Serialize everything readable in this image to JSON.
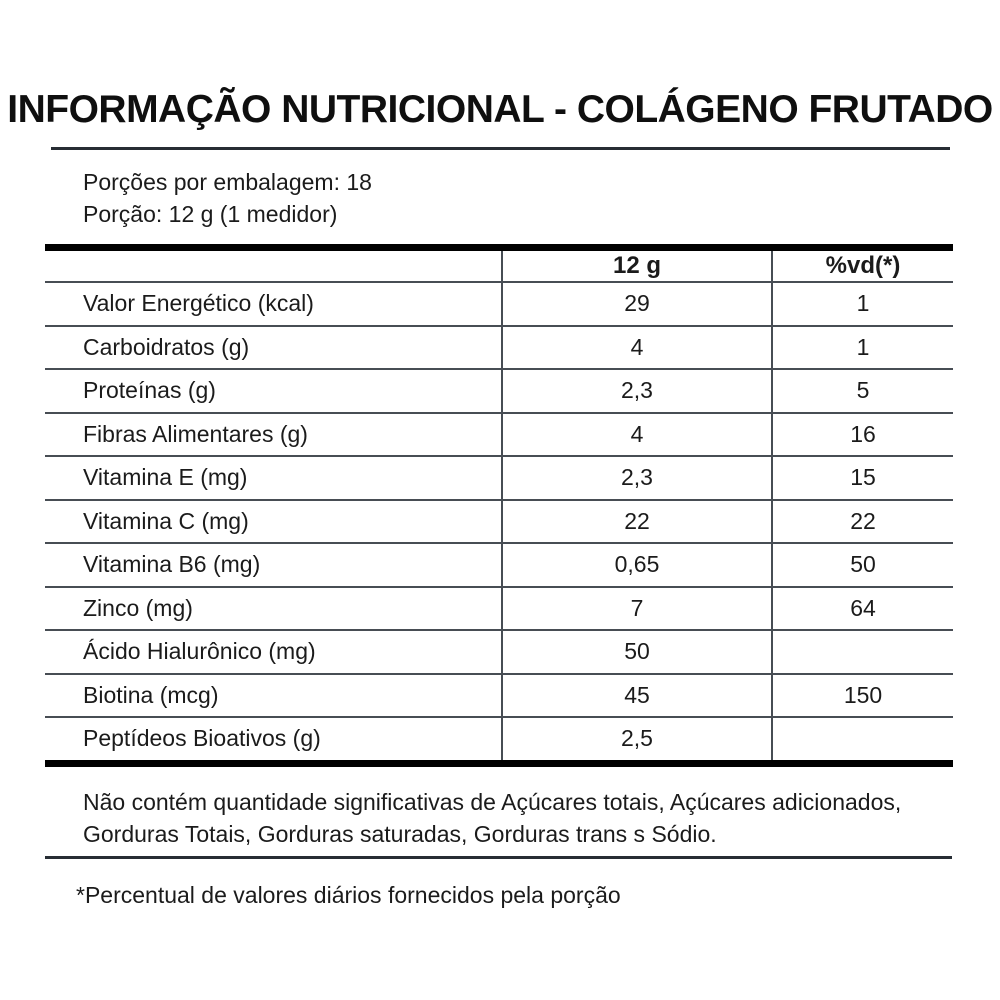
{
  "label": {
    "title": "INFORMAÇÃO NUTRICIONAL - COLÁGENO FRUTADO",
    "servings_line": "Porções por embalagem: 18",
    "portion_line": "Porção: 12 g (1 medidor)"
  },
  "table": {
    "columns": [
      "",
      "12 g",
      "%vd(*)"
    ],
    "rows": [
      {
        "label": "Valor Energético (kcal)",
        "amount": "29",
        "dv": "1"
      },
      {
        "label": "Carboidratos (g)",
        "amount": "4",
        "dv": "1"
      },
      {
        "label": "Proteínas (g)",
        "amount": "2,3",
        "dv": "5"
      },
      {
        "label": "Fibras Alimentares (g)",
        "amount": "4",
        "dv": "16"
      },
      {
        "label": "Vitamina E (mg)",
        "amount": "2,3",
        "dv": "15"
      },
      {
        "label": "Vitamina C (mg)",
        "amount": "22",
        "dv": "22"
      },
      {
        "label": "Vitamina B6 (mg)",
        "amount": "0,65",
        "dv": "50"
      },
      {
        "label": "Zinco (mg)",
        "amount": "7",
        "dv": "64"
      },
      {
        "label": "Ácido Hialurônico (mg)",
        "amount": "50",
        "dv": ""
      },
      {
        "label": "Biotina (mcg)",
        "amount": "45",
        "dv": "150"
      },
      {
        "label": "Peptídeos Bioativos (g)",
        "amount": "2,5",
        "dv": ""
      }
    ]
  },
  "footer": {
    "note_line1": "Não contém quantidade significativas de Açúcares totais, Açúcares adicionados,",
    "note_line2": "Gorduras Totais, Gorduras saturadas, Gorduras trans s Sódio.",
    "footnote": "*Percentual de valores diários fornecidos pela porção"
  },
  "colors": {
    "text": "#1b1b1b",
    "thick_rule": "#000000",
    "thin_rule": "#474d54",
    "divider_rule": "#272d34",
    "background": "#ffffff"
  }
}
